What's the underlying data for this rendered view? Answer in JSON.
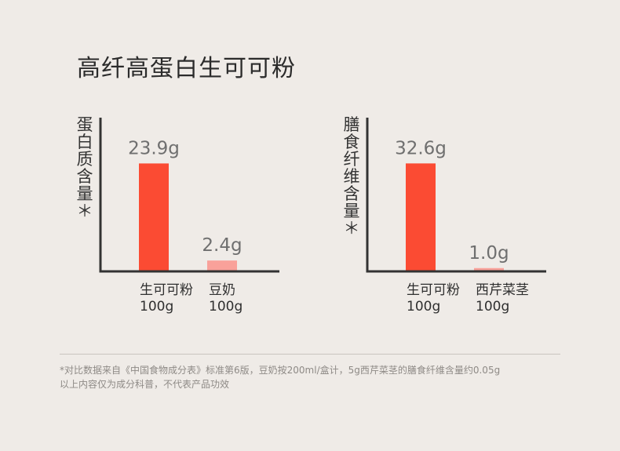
{
  "title": "高纤高蛋白生可可粉",
  "chart_data": [
    {
      "type": "bar",
      "ylabel": "蛋白质含量＊",
      "categories": [
        "生可可粉",
        "豆奶"
      ],
      "sublabels": [
        "100g",
        "100g"
      ],
      "values": [
        23.9,
        2.4
      ],
      "value_labels": [
        "23.9g",
        "2.4g"
      ],
      "colors": [
        "#fb4b33",
        "#f9a19a"
      ],
      "ylim": [
        0,
        33
      ]
    },
    {
      "type": "bar",
      "ylabel": "膳食纤维含量＊",
      "categories": [
        "生可可粉",
        "西芹菜茎"
      ],
      "sublabels": [
        "100g",
        "100g"
      ],
      "values": [
        32.6,
        1.0
      ],
      "value_labels": [
        "32.6g",
        "1.0g"
      ],
      "colors": [
        "#fb4b33",
        "#f9a19a"
      ],
      "ylim": [
        0,
        45
      ]
    }
  ],
  "footnote": {
    "line1": "*对比数据来自《中国食物成分表》标准第6版，豆奶按200ml/盒计，5g西芹菜茎的膳食纤维含量约0.05g",
    "line2": "以上内容仅为成分科普，不代表产品功效"
  },
  "colors": {
    "axis": "#333333",
    "value_text": "#6f6f6f"
  }
}
